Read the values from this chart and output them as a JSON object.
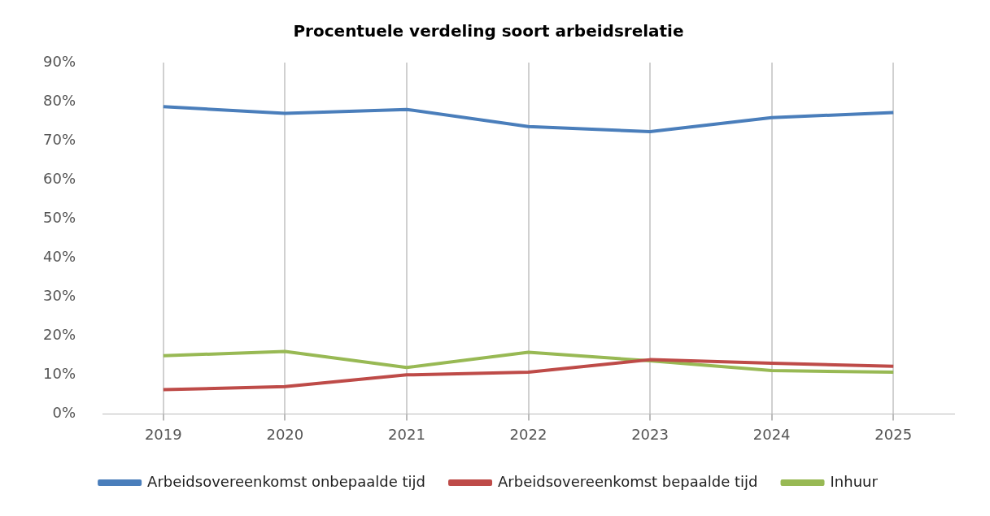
{
  "chart_data": {
    "type": "line",
    "title": "Procentuele verdeling soort arbeidsrelatie",
    "categories": [
      "2019",
      "2020",
      "2021",
      "2022",
      "2023",
      "2024",
      "2025"
    ],
    "series": [
      {
        "name": "Arbeidsovereenkomst onbepaalde tijd",
        "color": "#4a7ebb",
        "values": [
          78.7,
          77.0,
          78.0,
          73.6,
          72.3,
          75.9,
          77.2
        ]
      },
      {
        "name": "Arbeidsovereenkomst bepaalde tijd",
        "color": "#be4b48",
        "values": [
          6.2,
          7.0,
          10.0,
          10.7,
          13.9,
          13.0,
          12.2
        ]
      },
      {
        "name": "Inhuur",
        "color": "#98b954",
        "values": [
          14.9,
          16.0,
          11.9,
          15.8,
          13.6,
          11.1,
          10.7
        ]
      }
    ],
    "ylim": [
      0,
      90
    ],
    "yticks": [
      {
        "value": 0,
        "label": "0%"
      },
      {
        "value": 10,
        "label": "10%"
      },
      {
        "value": 20,
        "label": "20%"
      },
      {
        "value": 30,
        "label": "30%"
      },
      {
        "value": 40,
        "label": "40%"
      },
      {
        "value": 50,
        "label": "50%"
      },
      {
        "value": 60,
        "label": "60%"
      },
      {
        "value": 70,
        "label": "70%"
      },
      {
        "value": 80,
        "label": "80%"
      },
      {
        "value": 90,
        "label": "90%"
      }
    ],
    "grid": "x",
    "legend": "bottom",
    "marker": "none",
    "line_style": "solid"
  }
}
